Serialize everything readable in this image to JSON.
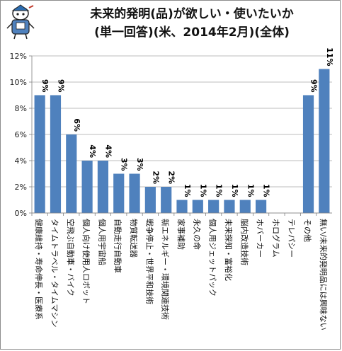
{
  "title": "未来的発明(品)が欲しい・使いたいか",
  "subtitle": "(単一回答)(米、2014年2月)(全体)",
  "chart_data": {
    "type": "bar",
    "categories": [
      "健康維持・寿命伸長・医療系",
      "タイムトラベル・タイムマシン",
      "空飛ぶ自動車・バイク",
      "個人向け使用人ロボット",
      "個人用宇宙船",
      "自動走行自動車",
      "物質転送器",
      "戦争停止・世界平和技術",
      "新エネルギー・環境関連技術",
      "家事補助",
      "永久の命",
      "個人用ジェットパック",
      "未来探知・富裕化",
      "脳内改造技術",
      "ホバーカー",
      "ホログラム",
      "テレパシー",
      "その他",
      "無い/未来的発明品には興味ない"
    ],
    "values": [
      9,
      9,
      6,
      4,
      4,
      3,
      3,
      2,
      2,
      1,
      1,
      1,
      1,
      1,
      1,
      0,
      0,
      9,
      11
    ],
    "data_labels": [
      "9%",
      "9%",
      "6%",
      "4%",
      "4%",
      "3%",
      "3%",
      "2%",
      "2%",
      "1%",
      "1%",
      "1%",
      "1%",
      "1%",
      "1%",
      "",
      "",
      "9%",
      "11%"
    ],
    "y_ticks": [
      "0%",
      "2%",
      "4%",
      "6%",
      "8%",
      "10%",
      "12%"
    ],
    "ylim": [
      0,
      12
    ],
    "grid": true,
    "bar_color": "#4f81bd"
  }
}
